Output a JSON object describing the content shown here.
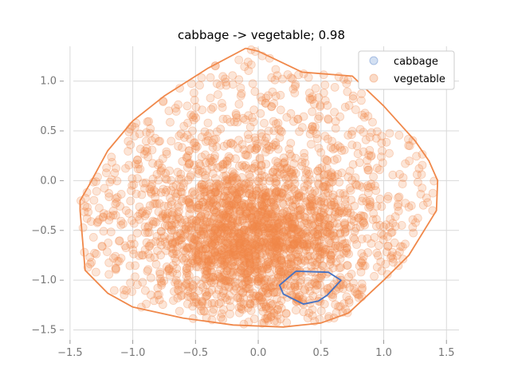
{
  "chart_data": {
    "type": "scatter",
    "title": "cabbage -> vegetable; 0.98",
    "xlabel": "",
    "ylabel": "",
    "xlim": [
      -1.55,
      1.6
    ],
    "ylim": [
      -1.6,
      1.35
    ],
    "x_ticks": [
      -1.5,
      -1.0,
      -0.5,
      0.0,
      0.5,
      1.0,
      1.5
    ],
    "x_tick_labels": [
      "−1.5",
      "−1.0",
      "−0.5",
      "0.0",
      "0.5",
      "1.0",
      "1.5"
    ],
    "y_ticks": [
      -1.5,
      -1.0,
      -0.5,
      0.0,
      0.5,
      1.0
    ],
    "y_tick_labels": [
      "−1.5",
      "−1.0",
      "−0.5",
      "0.0",
      "0.5",
      "1.0"
    ],
    "grid": true,
    "legend_position": "top-right",
    "series": [
      {
        "name": "cabbage",
        "color": "#aec7e8",
        "hull_color": "#4472c4",
        "points": [
          [
            0.18,
            -1.05
          ],
          [
            0.3,
            -0.91
          ],
          [
            0.56,
            -0.92
          ],
          [
            0.66,
            -1.0
          ],
          [
            0.48,
            -1.21
          ],
          [
            0.36,
            -1.24
          ],
          [
            0.2,
            -1.14
          ]
        ],
        "hull": [
          [
            0.3,
            -0.91
          ],
          [
            0.56,
            -0.92
          ],
          [
            0.66,
            -1.0
          ],
          [
            0.55,
            -1.15
          ],
          [
            0.48,
            -1.21
          ],
          [
            0.36,
            -1.24
          ],
          [
            0.2,
            -1.14
          ],
          [
            0.17,
            -1.05
          ],
          [
            0.3,
            -0.91
          ]
        ]
      },
      {
        "name": "vegetable",
        "color": "#f0884a",
        "hull_color": "#f0884a",
        "points_note_count": 0,
        "hull": [
          [
            -0.1,
            1.33
          ],
          [
            0.0,
            1.3
          ],
          [
            0.35,
            1.09
          ],
          [
            0.75,
            1.05
          ],
          [
            1.0,
            0.75
          ],
          [
            1.25,
            0.4
          ],
          [
            1.36,
            0.2
          ],
          [
            1.43,
            0.0
          ],
          [
            1.42,
            -0.3
          ],
          [
            1.2,
            -0.75
          ],
          [
            1.0,
            -1.0
          ],
          [
            0.72,
            -1.33
          ],
          [
            0.5,
            -1.43
          ],
          [
            0.2,
            -1.47
          ],
          [
            -0.2,
            -1.45
          ],
          [
            -0.6,
            -1.38
          ],
          [
            -1.0,
            -1.27
          ],
          [
            -1.2,
            -1.13
          ],
          [
            -1.38,
            -0.9
          ],
          [
            -1.42,
            -0.3
          ],
          [
            -1.42,
            -0.2
          ],
          [
            -1.35,
            -0.05
          ],
          [
            -1.2,
            0.3
          ],
          [
            -1.0,
            0.6
          ],
          [
            -0.75,
            0.85
          ],
          [
            -0.4,
            1.13
          ],
          [
            -0.1,
            1.33
          ]
        ]
      }
    ]
  }
}
